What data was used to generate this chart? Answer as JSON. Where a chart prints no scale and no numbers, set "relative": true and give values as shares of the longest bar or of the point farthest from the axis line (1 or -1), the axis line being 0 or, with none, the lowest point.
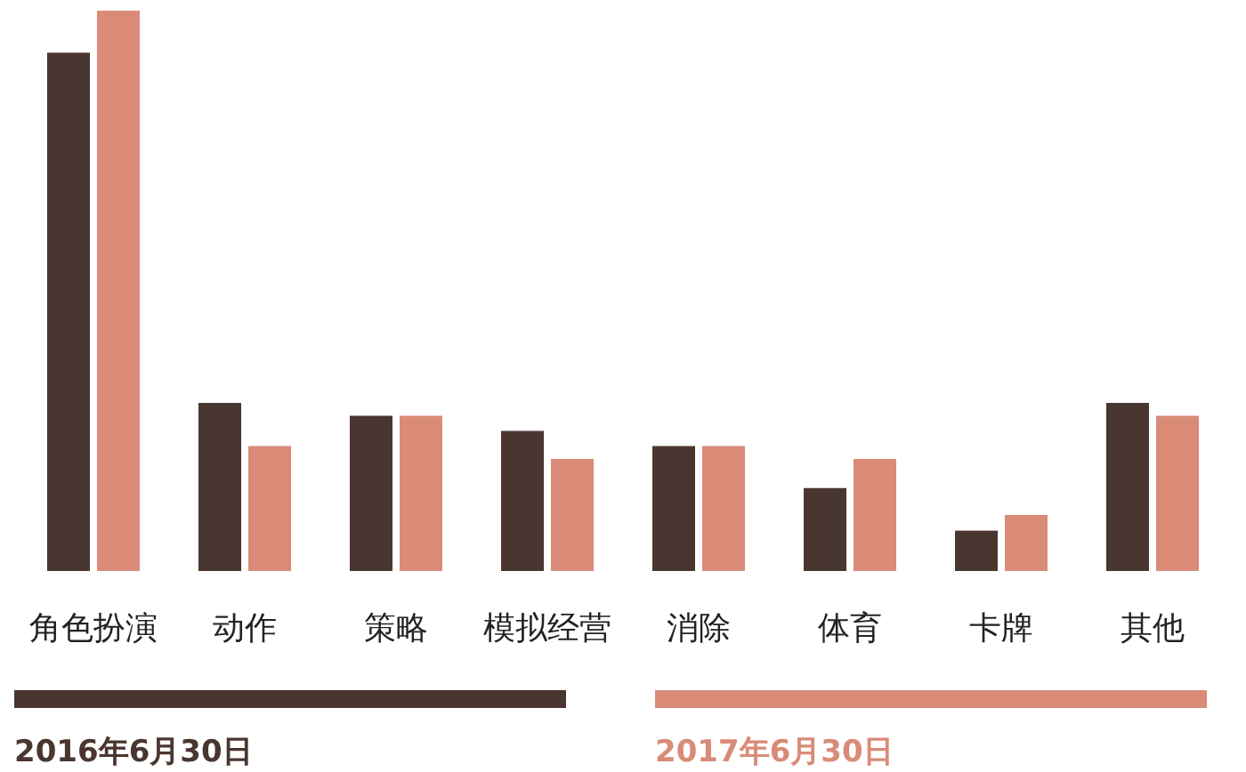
{
  "chart_data": {
    "type": "bar",
    "relative": true,
    "legend": "bottom",
    "categories": [
      "角色扮演",
      "动作",
      "策略",
      "模拟经营",
      "消除",
      "体育",
      "卡牌",
      "其他"
    ],
    "series": [
      {
        "name": "2016年6月30日",
        "color": "#4a3630",
        "values": [
          0.925,
          0.3,
          0.277,
          0.25,
          0.223,
          0.148,
          0.072,
          0.3
        ]
      },
      {
        "name": "2017年6月30日",
        "color": "#d98b78",
        "values": [
          1.0,
          0.223,
          0.277,
          0.2,
          0.223,
          0.2,
          0.1,
          0.277
        ]
      }
    ]
  }
}
